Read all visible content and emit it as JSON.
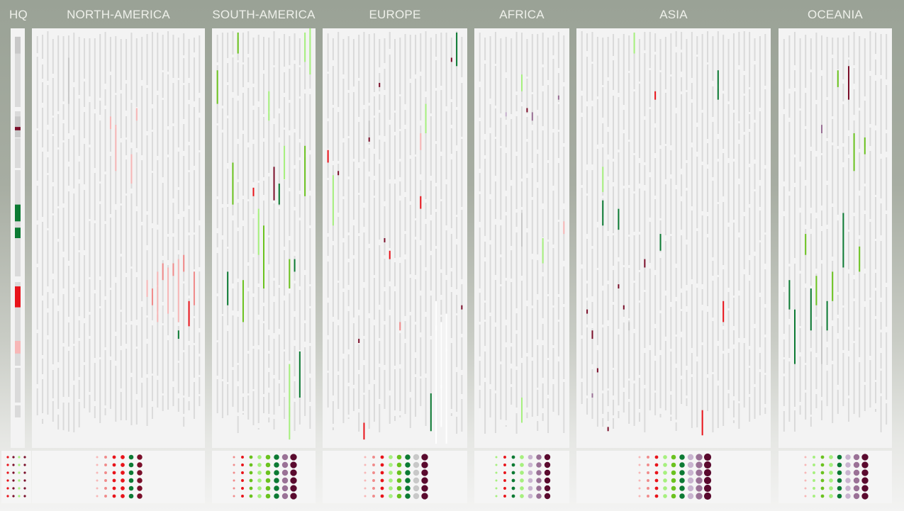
{
  "chart_data": {
    "type": "heatmap",
    "title": "",
    "xlabel": "",
    "ylabel": "",
    "regions": [
      {
        "id": "hq",
        "label": "HQ",
        "columns": 1
      },
      {
        "id": "north-america",
        "label": "NORTH-AMERICA",
        "columns": 32
      },
      {
        "id": "south-america",
        "label": "SOUTH-AMERICA",
        "columns": 19
      },
      {
        "id": "europe",
        "label": "EUROPE",
        "columns": 27
      },
      {
        "id": "africa",
        "label": "AFRICA",
        "columns": 17
      },
      {
        "id": "asia",
        "label": "ASIA",
        "columns": 36
      },
      {
        "id": "oceania",
        "label": "OCEANIA",
        "columns": 20
      }
    ],
    "status_colors": {
      "light_pink": "#f7b7b7",
      "pink": "#f08a8a",
      "red": "#e8131a",
      "dark_red": "#7a0f2a",
      "light_green": "#a6f07e",
      "green": "#6bc21f",
      "dark_green": "#0c7a33",
      "lavender": "#c8b3cf",
      "mauve": "#9a7196",
      "maroon": "#5a0a2e",
      "grey": "#c8c8c8",
      "white": "#ffffff",
      "baseline": "#dadada"
    },
    "segments": {
      "hq": [
        {
          "col": 0,
          "y0": 0.02,
          "y1": 0.06,
          "color": "grey"
        },
        {
          "col": 0,
          "y0": 0.21,
          "y1": 0.26,
          "color": "grey"
        },
        {
          "col": 0,
          "y0": 0.235,
          "y1": 0.243,
          "color": "dark_red"
        },
        {
          "col": 0,
          "y0": 0.42,
          "y1": 0.46,
          "color": "dark_green"
        },
        {
          "col": 0,
          "y0": 0.475,
          "y1": 0.5,
          "color": "dark_green"
        },
        {
          "col": 0,
          "y0": 0.615,
          "y1": 0.665,
          "color": "red"
        },
        {
          "col": 0,
          "y0": 0.745,
          "y1": 0.775,
          "color": "light_pink"
        }
      ],
      "north-america": [
        {
          "col": 6,
          "y0": 0.07,
          "y1": 0.18,
          "color": "grey"
        },
        {
          "col": 14,
          "y0": 0.21,
          "y1": 0.24,
          "color": "light_pink"
        },
        {
          "col": 15,
          "y0": 0.23,
          "y1": 0.34,
          "color": "light_pink"
        },
        {
          "col": 18,
          "y0": 0.3,
          "y1": 0.37,
          "color": "light_pink"
        },
        {
          "col": 19,
          "y0": 0.19,
          "y1": 0.22,
          "color": "light_pink"
        },
        {
          "col": 21,
          "y0": 0.6,
          "y1": 0.64,
          "color": "light_pink"
        },
        {
          "col": 22,
          "y0": 0.62,
          "y1": 0.66,
          "color": "pink"
        },
        {
          "col": 23,
          "y0": 0.58,
          "y1": 0.7,
          "color": "light_pink"
        },
        {
          "col": 24,
          "y0": 0.56,
          "y1": 0.6,
          "color": "pink"
        },
        {
          "col": 25,
          "y0": 0.57,
          "y1": 0.68,
          "color": "light_pink"
        },
        {
          "col": 26,
          "y0": 0.56,
          "y1": 0.59,
          "color": "pink"
        },
        {
          "col": 27,
          "y0": 0.55,
          "y1": 0.7,
          "color": "light_pink"
        },
        {
          "col": 28,
          "y0": 0.54,
          "y1": 0.58,
          "color": "pink"
        },
        {
          "col": 29,
          "y0": 0.65,
          "y1": 0.71,
          "color": "red"
        },
        {
          "col": 30,
          "y0": 0.58,
          "y1": 0.66,
          "color": "pink"
        },
        {
          "col": 27,
          "y0": 0.72,
          "y1": 0.74,
          "color": "dark_green"
        }
      ],
      "south-america": [
        {
          "col": 0,
          "y0": 0.1,
          "y1": 0.18,
          "color": "green"
        },
        {
          "col": 2,
          "y0": 0.58,
          "y1": 0.66,
          "color": "dark_green"
        },
        {
          "col": 3,
          "y0": 0.32,
          "y1": 0.42,
          "color": "green"
        },
        {
          "col": 4,
          "y0": 0.01,
          "y1": 0.06,
          "color": "green"
        },
        {
          "col": 5,
          "y0": 0.6,
          "y1": 0.7,
          "color": "green"
        },
        {
          "col": 7,
          "y0": 0.38,
          "y1": 0.4,
          "color": "red"
        },
        {
          "col": 8,
          "y0": 0.43,
          "y1": 0.54,
          "color": "light_green"
        },
        {
          "col": 9,
          "y0": 0.47,
          "y1": 0.62,
          "color": "green"
        },
        {
          "col": 10,
          "y0": 0.15,
          "y1": 0.22,
          "color": "light_green"
        },
        {
          "col": 11,
          "y0": 0.33,
          "y1": 0.41,
          "color": "dark_red"
        },
        {
          "col": 12,
          "y0": 0.37,
          "y1": 0.42,
          "color": "dark_green"
        },
        {
          "col": 13,
          "y0": 0.28,
          "y1": 0.36,
          "color": "light_green"
        },
        {
          "col": 14,
          "y0": 0.55,
          "y1": 0.62,
          "color": "green"
        },
        {
          "col": 15,
          "y0": 0.55,
          "y1": 0.58,
          "color": "dark_green"
        },
        {
          "col": 16,
          "y0": 0.77,
          "y1": 0.88,
          "color": "dark_green"
        },
        {
          "col": 17,
          "y0": 0.01,
          "y1": 0.08,
          "color": "light_green"
        },
        {
          "col": 18,
          "y0": 0.0,
          "y1": 0.11,
          "color": "light_green"
        },
        {
          "col": 17,
          "y0": 0.28,
          "y1": 0.4,
          "color": "green"
        },
        {
          "col": 14,
          "y0": 0.8,
          "y1": 0.98,
          "color": "light_green"
        }
      ],
      "europe": [
        {
          "col": 0,
          "y0": 0.29,
          "y1": 0.32,
          "color": "red"
        },
        {
          "col": 1,
          "y0": 0.35,
          "y1": 0.47,
          "color": "light_green"
        },
        {
          "col": 2,
          "y0": 0.34,
          "y1": 0.35,
          "color": "dark_red"
        },
        {
          "col": 6,
          "y0": 0.74,
          "y1": 0.75,
          "color": "dark_red"
        },
        {
          "col": 7,
          "y0": 0.94,
          "y1": 0.98,
          "color": "red"
        },
        {
          "col": 8,
          "y0": 0.22,
          "y1": 0.26,
          "color": "grey"
        },
        {
          "col": 8,
          "y0": 0.26,
          "y1": 0.27,
          "color": "dark_red"
        },
        {
          "col": 10,
          "y0": 0.13,
          "y1": 0.14,
          "color": "dark_red"
        },
        {
          "col": 11,
          "y0": 0.5,
          "y1": 0.51,
          "color": "dark_red"
        },
        {
          "col": 12,
          "y0": 0.53,
          "y1": 0.55,
          "color": "red"
        },
        {
          "col": 14,
          "y0": 0.7,
          "y1": 0.72,
          "color": "pink"
        },
        {
          "col": 18,
          "y0": 0.25,
          "y1": 0.29,
          "color": "light_pink"
        },
        {
          "col": 18,
          "y0": 0.4,
          "y1": 0.43,
          "color": "red"
        },
        {
          "col": 19,
          "y0": 0.18,
          "y1": 0.25,
          "color": "light_green"
        },
        {
          "col": 20,
          "y0": 0.87,
          "y1": 0.96,
          "color": "dark_green"
        },
        {
          "col": 21,
          "y0": 0.65,
          "y1": 0.99,
          "color": "white"
        },
        {
          "col": 22,
          "y0": 0.7,
          "y1": 0.95,
          "color": "white"
        },
        {
          "col": 23,
          "y0": 0.68,
          "y1": 0.99,
          "color": "white"
        },
        {
          "col": 24,
          "y0": 0.07,
          "y1": 0.08,
          "color": "dark_red"
        },
        {
          "col": 25,
          "y0": 0.01,
          "y1": 0.09,
          "color": "dark_green"
        },
        {
          "col": 26,
          "y0": 0.66,
          "y1": 0.67,
          "color": "dark_red"
        }
      ],
      "africa": [
        {
          "col": 5,
          "y0": 0.2,
          "y1": 0.21,
          "color": "lavender"
        },
        {
          "col": 8,
          "y0": 0.11,
          "y1": 0.15,
          "color": "light_green"
        },
        {
          "col": 8,
          "y0": 0.44,
          "y1": 0.52,
          "color": "grey"
        },
        {
          "col": 9,
          "y0": 0.19,
          "y1": 0.2,
          "color": "dark_red"
        },
        {
          "col": 10,
          "y0": 0.2,
          "y1": 0.22,
          "color": "mauve"
        },
        {
          "col": 12,
          "y0": 0.5,
          "y1": 0.56,
          "color": "light_green"
        },
        {
          "col": 15,
          "y0": 0.16,
          "y1": 0.17,
          "color": "mauve"
        },
        {
          "col": 16,
          "y0": 0.46,
          "y1": 0.49,
          "color": "light_pink"
        },
        {
          "col": 8,
          "y0": 0.88,
          "y1": 0.94,
          "color": "light_green"
        }
      ],
      "asia": [
        {
          "col": 1,
          "y0": 0.67,
          "y1": 0.68,
          "color": "dark_red"
        },
        {
          "col": 2,
          "y0": 0.72,
          "y1": 0.74,
          "color": "dark_red"
        },
        {
          "col": 3,
          "y0": 0.81,
          "y1": 0.82,
          "color": "dark_red"
        },
        {
          "col": 4,
          "y0": 0.33,
          "y1": 0.39,
          "color": "light_green"
        },
        {
          "col": 4,
          "y0": 0.41,
          "y1": 0.47,
          "color": "dark_green"
        },
        {
          "col": 5,
          "y0": 0.95,
          "y1": 0.96,
          "color": "dark_red"
        },
        {
          "col": 7,
          "y0": 0.43,
          "y1": 0.48,
          "color": "dark_green"
        },
        {
          "col": 7,
          "y0": 0.61,
          "y1": 0.62,
          "color": "dark_red"
        },
        {
          "col": 8,
          "y0": 0.66,
          "y1": 0.67,
          "color": "dark_red"
        },
        {
          "col": 9,
          "y0": 0.7,
          "y1": 0.72,
          "color": "grey"
        },
        {
          "col": 10,
          "y0": 0.01,
          "y1": 0.06,
          "color": "light_green"
        },
        {
          "col": 14,
          "y0": 0.15,
          "y1": 0.17,
          "color": "red"
        },
        {
          "col": 15,
          "y0": 0.49,
          "y1": 0.53,
          "color": "dark_green"
        },
        {
          "col": 12,
          "y0": 0.55,
          "y1": 0.57,
          "color": "dark_red"
        },
        {
          "col": 23,
          "y0": 0.91,
          "y1": 0.97,
          "color": "red"
        },
        {
          "col": 26,
          "y0": 0.1,
          "y1": 0.17,
          "color": "dark_green"
        },
        {
          "col": 27,
          "y0": 0.65,
          "y1": 0.7,
          "color": "red"
        },
        {
          "col": 2,
          "y0": 0.87,
          "y1": 0.88,
          "color": "mauve"
        }
      ],
      "oceania": [
        {
          "col": 1,
          "y0": 0.6,
          "y1": 0.67,
          "color": "dark_green"
        },
        {
          "col": 2,
          "y0": 0.67,
          "y1": 0.8,
          "color": "dark_green"
        },
        {
          "col": 4,
          "y0": 0.49,
          "y1": 0.54,
          "color": "green"
        },
        {
          "col": 5,
          "y0": 0.62,
          "y1": 0.72,
          "color": "dark_green"
        },
        {
          "col": 6,
          "y0": 0.59,
          "y1": 0.66,
          "color": "green"
        },
        {
          "col": 7,
          "y0": 0.23,
          "y1": 0.25,
          "color": "mauve"
        },
        {
          "col": 8,
          "y0": 0.65,
          "y1": 0.72,
          "color": "dark_green"
        },
        {
          "col": 9,
          "y0": 0.58,
          "y1": 0.65,
          "color": "green"
        },
        {
          "col": 10,
          "y0": 0.1,
          "y1": 0.14,
          "color": "green"
        },
        {
          "col": 11,
          "y0": 0.44,
          "y1": 0.57,
          "color": "dark_green"
        },
        {
          "col": 12,
          "y0": 0.09,
          "y1": 0.17,
          "color": "dark_red"
        },
        {
          "col": 13,
          "y0": 0.25,
          "y1": 0.34,
          "color": "green"
        },
        {
          "col": 14,
          "y0": 0.52,
          "y1": 0.58,
          "color": "green"
        },
        {
          "col": 15,
          "y0": 0.26,
          "y1": 0.3,
          "color": "green"
        },
        {
          "col": 7,
          "y0": 0.71,
          "y1": 0.8,
          "color": "grey"
        }
      ]
    },
    "dot_legend": {
      "hq": [
        [
          "red",
          "dark_red",
          "light_green",
          "dark_red"
        ]
      ],
      "north-america": [
        [
          "light_pink",
          "pink",
          "red",
          "red",
          "dark_green",
          "dark_red"
        ]
      ],
      "south-america": [
        [
          "pink",
          "red",
          "green",
          "light_green",
          "green",
          "dark_green",
          "mauve",
          "maroon"
        ]
      ],
      "europe": [
        [
          "light_pink",
          "pink",
          "red",
          "light_green",
          "green",
          "dark_green",
          "grey",
          "maroon"
        ]
      ],
      "africa": [
        [
          "light_green",
          "red",
          "dark_green",
          "light_green",
          "lavender",
          "mauve",
          "maroon"
        ]
      ],
      "asia": [
        [
          "light_pink",
          "pink",
          "red",
          "light_green",
          "green",
          "dark_green",
          "lavender",
          "mauve",
          "maroon"
        ]
      ],
      "oceania": [
        [
          "light_pink",
          "light_green",
          "green",
          "light_green",
          "dark_green",
          "lavender",
          "mauve",
          "maroon"
        ]
      ]
    }
  }
}
